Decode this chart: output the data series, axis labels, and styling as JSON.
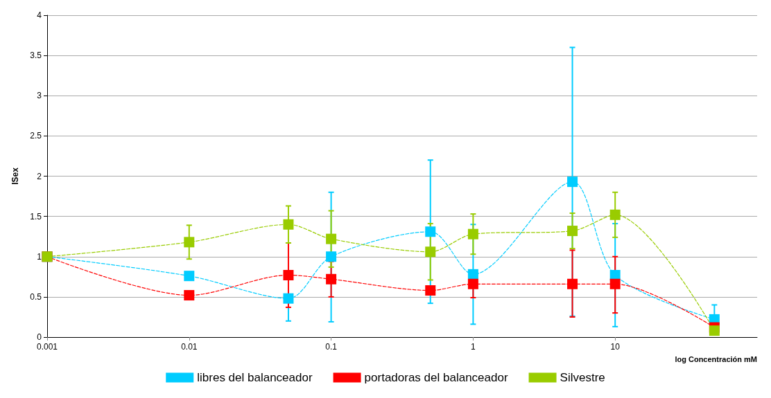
{
  "chart_data": {
    "type": "line",
    "xlabel": "log Concentración mM",
    "ylabel": "ISex",
    "log": "x",
    "xlim": [
      0.001,
      100
    ],
    "xticks": [
      0.001,
      0.01,
      0.1,
      1,
      10
    ],
    "ylim": [
      0,
      4
    ],
    "yticks": [
      0,
      0.5,
      1,
      1.5,
      2,
      2.5,
      3,
      3.5,
      4
    ],
    "grid": "y",
    "legend": "bottom",
    "marker": "square",
    "line_style": "dashed",
    "x": [
      0.001,
      0.01,
      0.05,
      0.1,
      0.5,
      1,
      5,
      10,
      50
    ],
    "series": [
      {
        "name": "libres del balanceador",
        "color": "#00ccff",
        "values": [
          1,
          0.76,
          0.48,
          1.0,
          1.31,
          0.78,
          1.93,
          0.77,
          0.22
        ],
        "errors": [
          null,
          null,
          [
            0.2,
            0.48
          ],
          [
            0.19,
            1.8
          ],
          [
            0.42,
            2.2
          ],
          [
            0.16,
            1.4
          ],
          [
            0.26,
            3.6
          ],
          [
            0.13,
            1.41
          ],
          [
            0.04,
            0.4
          ]
        ]
      },
      {
        "name": "portadoras del balanceador",
        "color": "#ff0000",
        "values": [
          1,
          0.52,
          0.77,
          0.72,
          0.58,
          0.66,
          0.66,
          0.66,
          0.12
        ],
        "errors": [
          null,
          null,
          [
            0.37,
            1.17
          ],
          [
            0.5,
            0.94
          ],
          null,
          [
            0.49,
            0.83
          ],
          [
            0.25,
            1.08
          ],
          [
            0.3,
            1.0
          ],
          null
        ]
      },
      {
        "name": "Silvestre",
        "color": "#99cc00",
        "values": [
          1,
          1.18,
          1.4,
          1.22,
          1.06,
          1.28,
          1.32,
          1.52,
          0.08
        ],
        "errors": [
          null,
          [
            0.97,
            1.39
          ],
          [
            1.17,
            1.63
          ],
          [
            0.87,
            1.57
          ],
          [
            0.71,
            1.41
          ],
          [
            1.03,
            1.53
          ],
          [
            1.1,
            1.54
          ],
          [
            1.24,
            1.8
          ],
          null
        ]
      }
    ]
  }
}
